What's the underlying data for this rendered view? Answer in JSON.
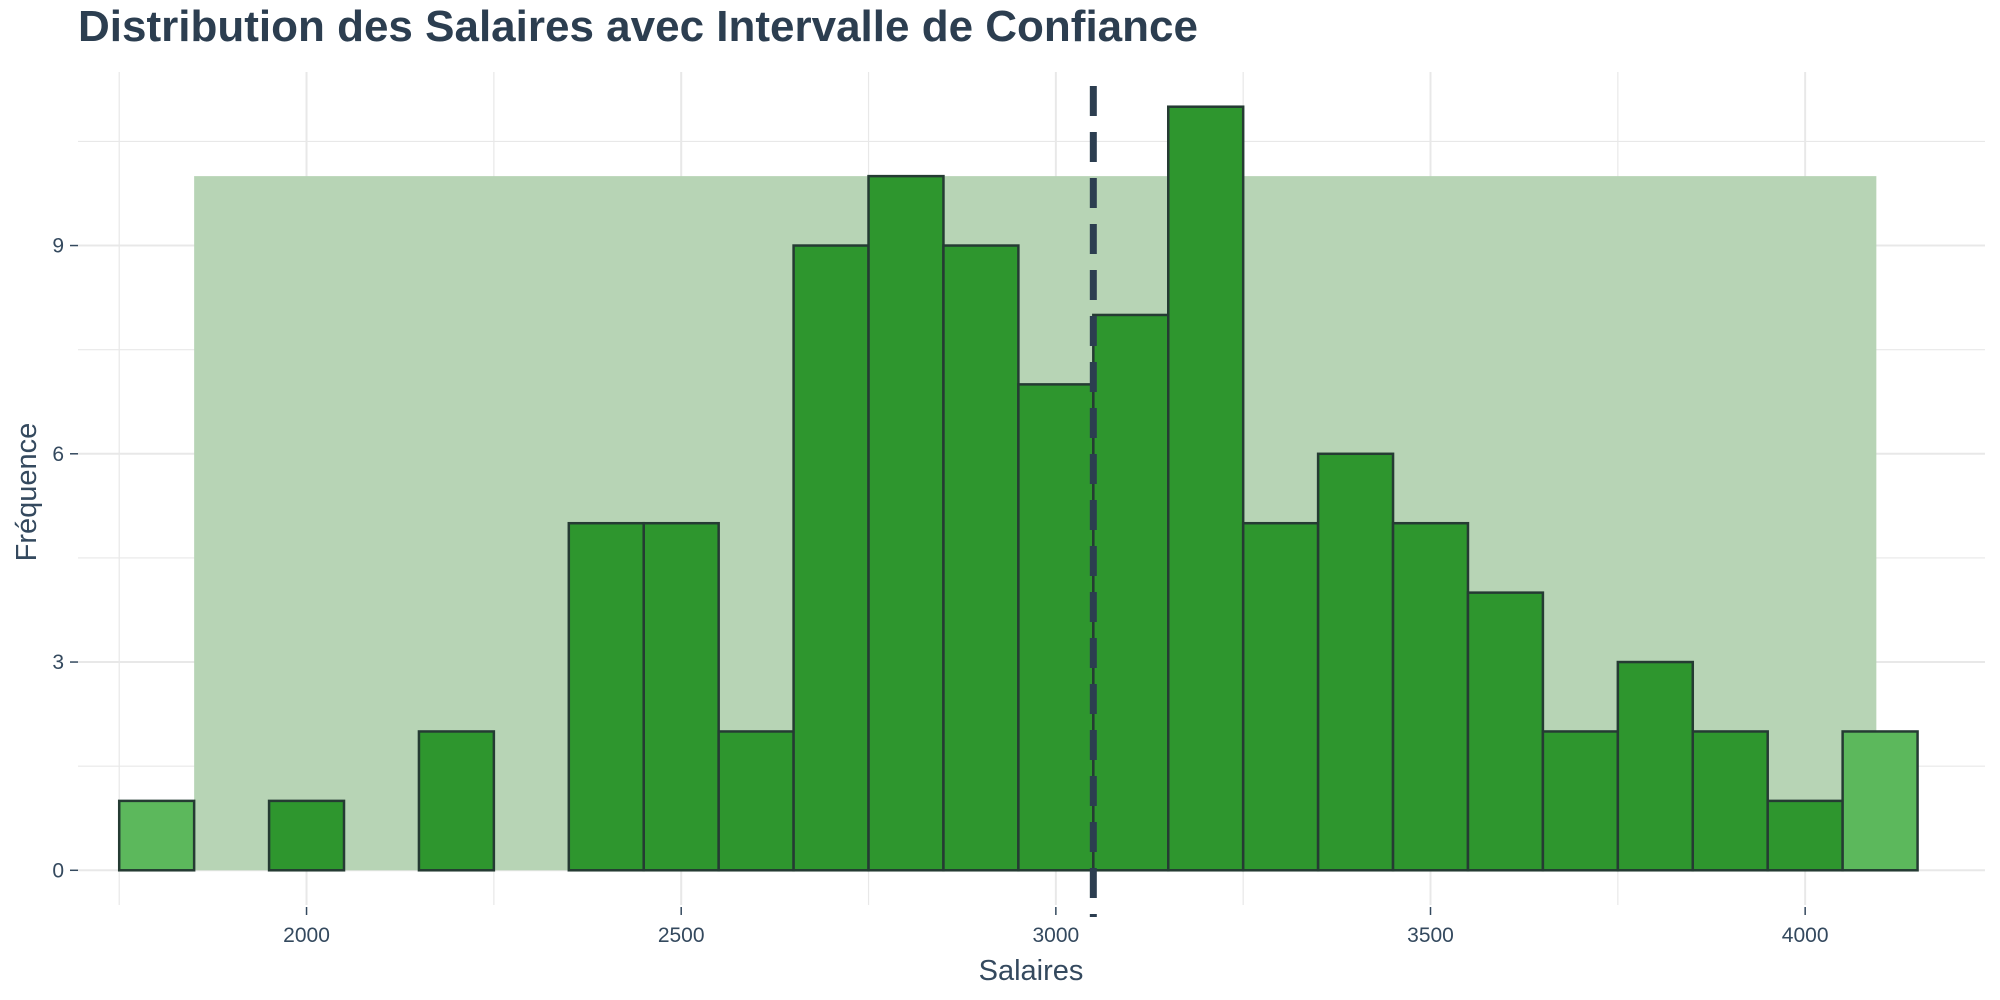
{
  "chart_data": {
    "type": "bar",
    "title": "Distribution des Salaires avec Intervalle de Confiance",
    "xlabel": "Salaires",
    "ylabel": "Fréquence",
    "xlim": [
      1695,
      4240
    ],
    "ylim": [
      -0.5,
      11.5
    ],
    "x_ticks": [
      2000,
      2500,
      3000,
      3500,
      4000
    ],
    "y_ticks": [
      0,
      3,
      6,
      9
    ],
    "grid": true,
    "bin_width": 100,
    "bins": [
      {
        "start": 1750,
        "end": 1850,
        "count": 1
      },
      {
        "start": 1850,
        "end": 1950,
        "count": 0
      },
      {
        "start": 1950,
        "end": 2050,
        "count": 1
      },
      {
        "start": 2050,
        "end": 2150,
        "count": 0
      },
      {
        "start": 2150,
        "end": 2250,
        "count": 2
      },
      {
        "start": 2250,
        "end": 2350,
        "count": 0
      },
      {
        "start": 2350,
        "end": 2450,
        "count": 5
      },
      {
        "start": 2450,
        "end": 2550,
        "count": 5
      },
      {
        "start": 2550,
        "end": 2650,
        "count": 2
      },
      {
        "start": 2650,
        "end": 2750,
        "count": 9
      },
      {
        "start": 2750,
        "end": 2850,
        "count": 10
      },
      {
        "start": 2850,
        "end": 2950,
        "count": 9
      },
      {
        "start": 2950,
        "end": 3050,
        "count": 7
      },
      {
        "start": 3050,
        "end": 3150,
        "count": 8
      },
      {
        "start": 3150,
        "end": 3250,
        "count": 11
      },
      {
        "start": 3250,
        "end": 3350,
        "count": 5
      },
      {
        "start": 3350,
        "end": 3450,
        "count": 6
      },
      {
        "start": 3450,
        "end": 3550,
        "count": 5
      },
      {
        "start": 3550,
        "end": 3650,
        "count": 4
      },
      {
        "start": 3650,
        "end": 3750,
        "count": 2
      },
      {
        "start": 3750,
        "end": 3850,
        "count": 3
      },
      {
        "start": 3850,
        "end": 3950,
        "count": 2
      },
      {
        "start": 3950,
        "end": 4050,
        "count": 1
      },
      {
        "start": 4050,
        "end": 4150,
        "count": 2
      }
    ],
    "confidence_band": {
      "x_min": 1850,
      "x_max": 4095,
      "y_max": 10
    },
    "mean_line": {
      "x": 3050
    },
    "colors": {
      "bar_fill": "#2e962e",
      "bar_fill_outside": "#5cb85c",
      "bar_outline": "#253b33",
      "band_fill": "#b7d4b5",
      "mean_line": "#2c3e50",
      "grid": "#e8e8e8",
      "text": "#34495e",
      "title": "#2c3e50"
    }
  }
}
